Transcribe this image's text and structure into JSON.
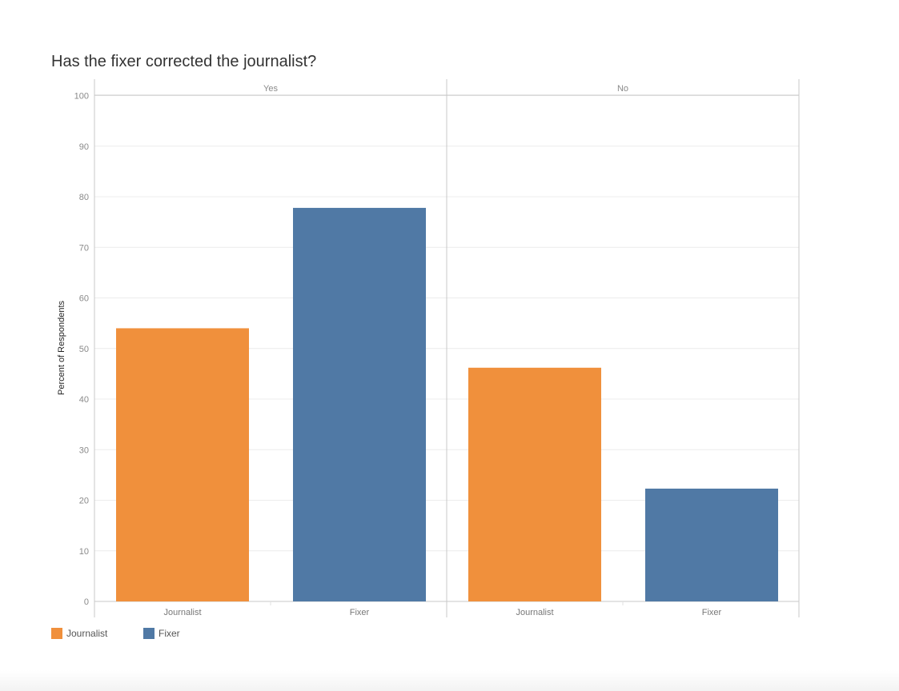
{
  "chart_data": {
    "type": "bar",
    "title": "Has the fixer corrected the journalist?",
    "ylabel": "Percent of Respondents",
    "xlabel": "",
    "ylim": [
      0,
      100
    ],
    "yticks": [
      0,
      10,
      20,
      30,
      40,
      50,
      60,
      70,
      80,
      90,
      100
    ],
    "grid": true,
    "legend_position": "bottom-left",
    "panels": [
      {
        "label": "Yes",
        "categories": [
          "Journalist",
          "Fixer"
        ],
        "values": [
          54,
          77.8
        ]
      },
      {
        "label": "No",
        "categories": [
          "Journalist",
          "Fixer"
        ],
        "values": [
          46.2,
          22.3
        ]
      }
    ],
    "series": [
      {
        "name": "Journalist",
        "color": "#F0903C"
      },
      {
        "name": "Fixer",
        "color": "#5079A5"
      }
    ]
  }
}
